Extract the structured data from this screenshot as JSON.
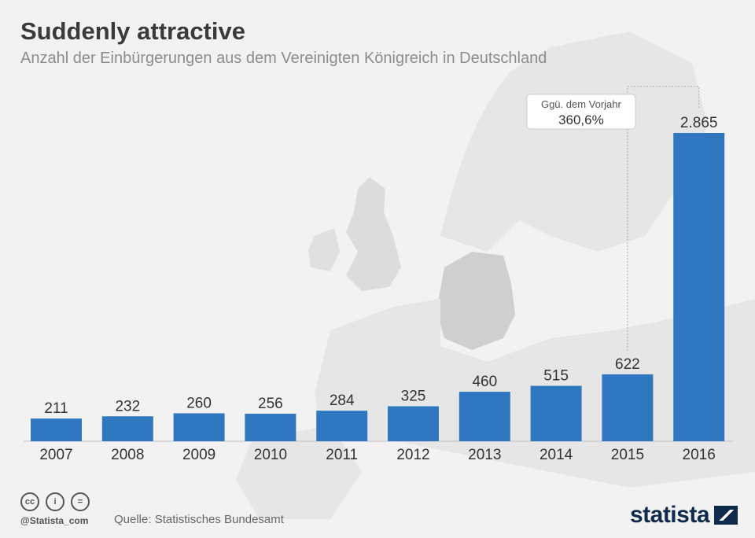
{
  "header": {
    "title": "Suddenly attractive",
    "subtitle": "Anzahl der Einbürgerungen aus dem Vereinigten Königreich in Deutschland"
  },
  "annotation": {
    "line1": "Ggü. dem Vorjahr",
    "line2": "360,6%"
  },
  "footer": {
    "handle": "@Statista_com",
    "source": "Quelle: Statistisches Bundesamt",
    "logo": "statista",
    "license_icons": [
      "cc-icon",
      "by-icon",
      "nd-icon"
    ],
    "license_glyphs": [
      "cc",
      "i",
      "="
    ]
  },
  "colors": {
    "bar": "#2f78c0",
    "background": "#f2f2f2",
    "map_land": "#e6e6e6",
    "map_highlight": "#cfcfcf",
    "logo": "#0f2a4a"
  },
  "chart_data": {
    "type": "bar",
    "categories": [
      "2007",
      "2008",
      "2009",
      "2010",
      "2011",
      "2012",
      "2013",
      "2014",
      "2015",
      "2016"
    ],
    "values": [
      211,
      232,
      260,
      256,
      284,
      325,
      460,
      515,
      622,
      2865
    ],
    "value_labels": [
      "211",
      "232",
      "260",
      "256",
      "284",
      "325",
      "460",
      "515",
      "622",
      "2.865"
    ],
    "ylim": [
      0,
      2865
    ],
    "title": "Suddenly attractive",
    "xlabel": "",
    "ylabel": "",
    "grid": false,
    "legend": "none"
  }
}
